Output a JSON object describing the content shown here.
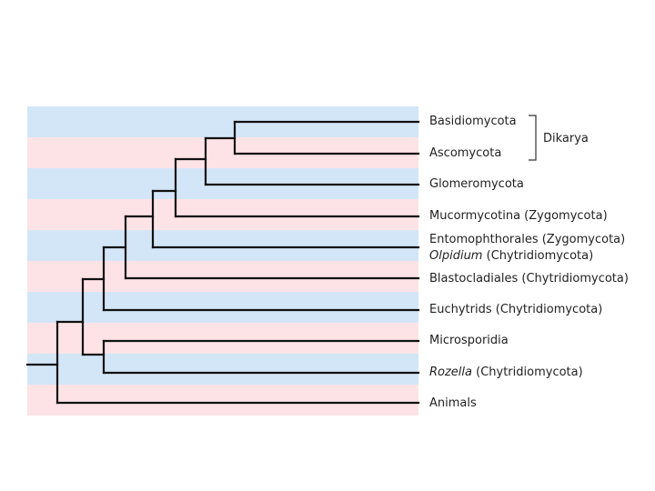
{
  "taxa": [
    {
      "name": "Basidiomycota",
      "italic": "",
      "rest": ""
    },
    {
      "name": "Ascomycota",
      "italic": "",
      "rest": ""
    },
    {
      "name": "Glomeromycota",
      "italic": "",
      "rest": ""
    },
    {
      "name": "Mucormycotina (Zygomycota)",
      "italic": "",
      "rest": ""
    },
    {
      "name": "Entomophthorales (Zygomycota)",
      "italic": "",
      "rest": ""
    },
    {
      "name": "",
      "italic": "Olpidium",
      "rest": " (Chytridiomycota)"
    },
    {
      "name": "Blastocladiales (Chytridiomycota)",
      "italic": "",
      "rest": ""
    },
    {
      "name": "Euchytrids (Chytridiomycota)",
      "italic": "",
      "rest": ""
    },
    {
      "name": "Microsporidia",
      "italic": "",
      "rest": ""
    },
    {
      "name": "",
      "italic": "Rozella",
      "rest": " (Chytridiomycota)"
    },
    {
      "name": "Animals",
      "italic": "",
      "rest": ""
    }
  ],
  "group_label": "Dikarya",
  "colors": {
    "line": "#111111",
    "band_blue": "#d2e6f8",
    "band_pink": "#fde3e6"
  }
}
